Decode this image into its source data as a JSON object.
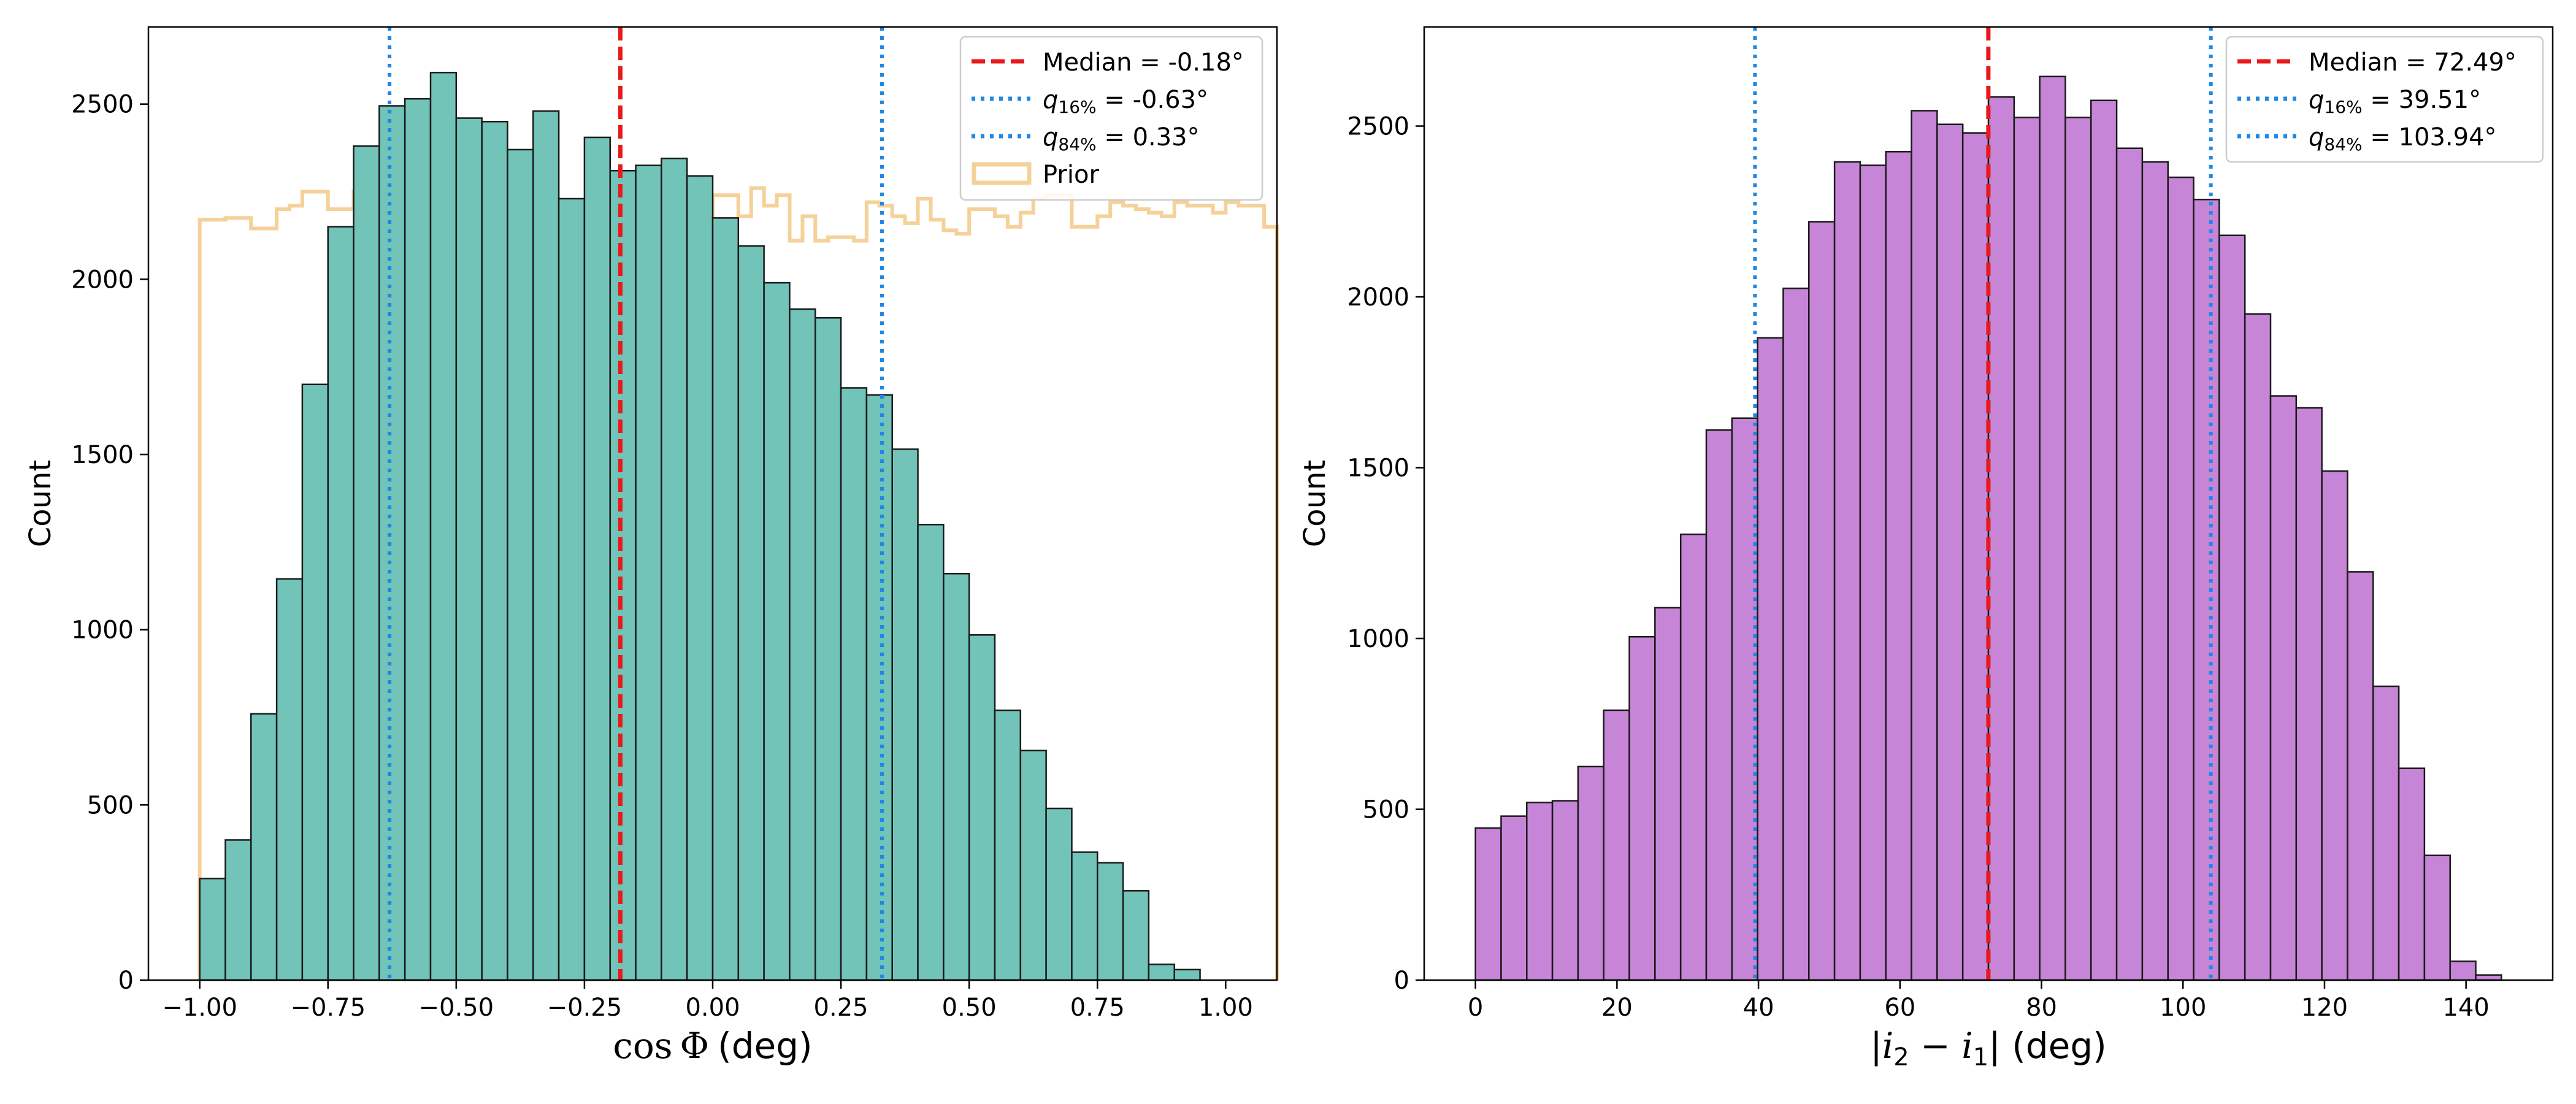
{
  "colors": {
    "left_bar": "#72c3b8",
    "right_bar": "#c685d6",
    "median": "#e8191b",
    "quantile": "#1f88e5",
    "prior": "#f5d19a",
    "edge": "#1a1a1a"
  },
  "chart_data": [
    {
      "type": "bar",
      "name": "left",
      "xlabel": "cos Φ (deg)",
      "ylabel": "Count",
      "xlim": [
        -1.1,
        1.1
      ],
      "ylim": [
        0,
        2720
      ],
      "xticks": [
        -1.0,
        -0.75,
        -0.5,
        -0.25,
        0.0,
        0.25,
        0.5,
        0.75,
        1.0
      ],
      "xtick_labels": [
        "−1.00",
        "−0.75",
        "−0.50",
        "−0.25",
        "0.00",
        "0.25",
        "0.50",
        "0.75",
        "1.00"
      ],
      "yticks": [
        0,
        500,
        1000,
        1500,
        2000,
        2500
      ],
      "ytick_labels": [
        "0",
        "500",
        "1000",
        "1500",
        "2000",
        "2500"
      ],
      "bin_start": -1.0,
      "bin_width": 0.05,
      "values": [
        290,
        400,
        760,
        1145,
        1700,
        2150,
        2380,
        2495,
        2515,
        2590,
        2460,
        2450,
        2370,
        2480,
        2230,
        2405,
        2310,
        2325,
        2345,
        2295,
        2175,
        2095,
        1990,
        1915,
        1890,
        1690,
        1670,
        1515,
        1300,
        1160,
        985,
        770,
        655,
        490,
        365,
        335,
        255,
        45,
        30
      ],
      "prior": {
        "label": "Prior",
        "bin_start": -1.0,
        "bin_width": 0.025,
        "values": [
          2170,
          2170,
          2175,
          2175,
          2145,
          2145,
          2200,
          2210,
          2250,
          2250,
          2200,
          2200,
          2250,
          2250,
          2130,
          2130,
          2120,
          2180,
          2140,
          2110,
          2150,
          2090,
          2100,
          2180,
          2250,
          2240,
          2200,
          2180,
          2110,
          2180,
          2110,
          2100,
          2120,
          2180,
          2220,
          2230,
          2250,
          2260,
          2200,
          2160,
          2240,
          2240,
          2180,
          2260,
          2210,
          2240,
          2110,
          2180,
          2110,
          2120,
          2120,
          2110,
          2220,
          2210,
          2180,
          2160,
          2230,
          2170,
          2140,
          2130,
          2200,
          2200,
          2180,
          2150,
          2190,
          2230,
          2240,
          2240,
          2150,
          2150,
          2180,
          2220,
          2210,
          2200,
          2190,
          2180,
          2220,
          2210,
          2210,
          2190,
          2220,
          2210,
          2210,
          2150
        ]
      },
      "vlines": [
        {
          "kind": "median",
          "x": -0.18,
          "label_prefix": "Median = ",
          "label_value": "-0.18°"
        },
        {
          "kind": "q16",
          "x": -0.63,
          "label_prefix": "q",
          "label_sub": "16%",
          "label_value": " = -0.63°"
        },
        {
          "kind": "q84",
          "x": 0.33,
          "label_prefix": "q",
          "label_sub": "84%",
          "label_value": " = 0.33°"
        }
      ],
      "legend": {
        "position": "top-right",
        "entries": [
          "Median = -0.18°",
          "q16% = -0.63°",
          "q84% = 0.33°",
          "Prior"
        ]
      }
    },
    {
      "type": "bar",
      "name": "right",
      "xlabel": "|i₂ − i₁| (deg)",
      "xlabel_parts": {
        "pre": "|",
        "i2": "i",
        "s2": "2",
        "minus": " − ",
        "i1": "i",
        "s1": "1",
        "post": "| (deg)"
      },
      "ylabel": "Count",
      "xlim": [
        -7.25,
        152.25
      ],
      "ylim": [
        0,
        2790
      ],
      "xticks": [
        0,
        20,
        40,
        60,
        80,
        100,
        120,
        140
      ],
      "xtick_labels": [
        "0",
        "20",
        "40",
        "60",
        "80",
        "100",
        "120",
        "140"
      ],
      "yticks": [
        0,
        500,
        1000,
        1500,
        2000,
        2500
      ],
      "ytick_labels": [
        "0",
        "500",
        "1000",
        "1500",
        "2000",
        "2500"
      ],
      "bin_start": 0,
      "bin_width": 3.625,
      "values": [
        445,
        480,
        520,
        525,
        625,
        790,
        1005,
        1090,
        1305,
        1610,
        1645,
        1880,
        2025,
        2220,
        2395,
        2385,
        2425,
        2545,
        2505,
        2480,
        2585,
        2525,
        2645,
        2525,
        2575,
        2435,
        2395,
        2350,
        2285,
        2180,
        1950,
        1710,
        1675,
        1490,
        1195,
        860,
        620,
        365,
        55,
        15
      ],
      "vlines": [
        {
          "kind": "median",
          "x": 72.49,
          "label_prefix": "Median = ",
          "label_value": "72.49°"
        },
        {
          "kind": "q16",
          "x": 39.51,
          "label_prefix": "q",
          "label_sub": "16%",
          "label_value": " = 39.51°"
        },
        {
          "kind": "q84",
          "x": 103.94,
          "label_prefix": "q",
          "label_sub": "84%",
          "label_value": " = 103.94°"
        }
      ],
      "legend": {
        "position": "top-right",
        "entries": [
          "Median = 72.49°",
          "q16% = 39.51°",
          "q84% = 103.94°"
        ]
      }
    }
  ]
}
